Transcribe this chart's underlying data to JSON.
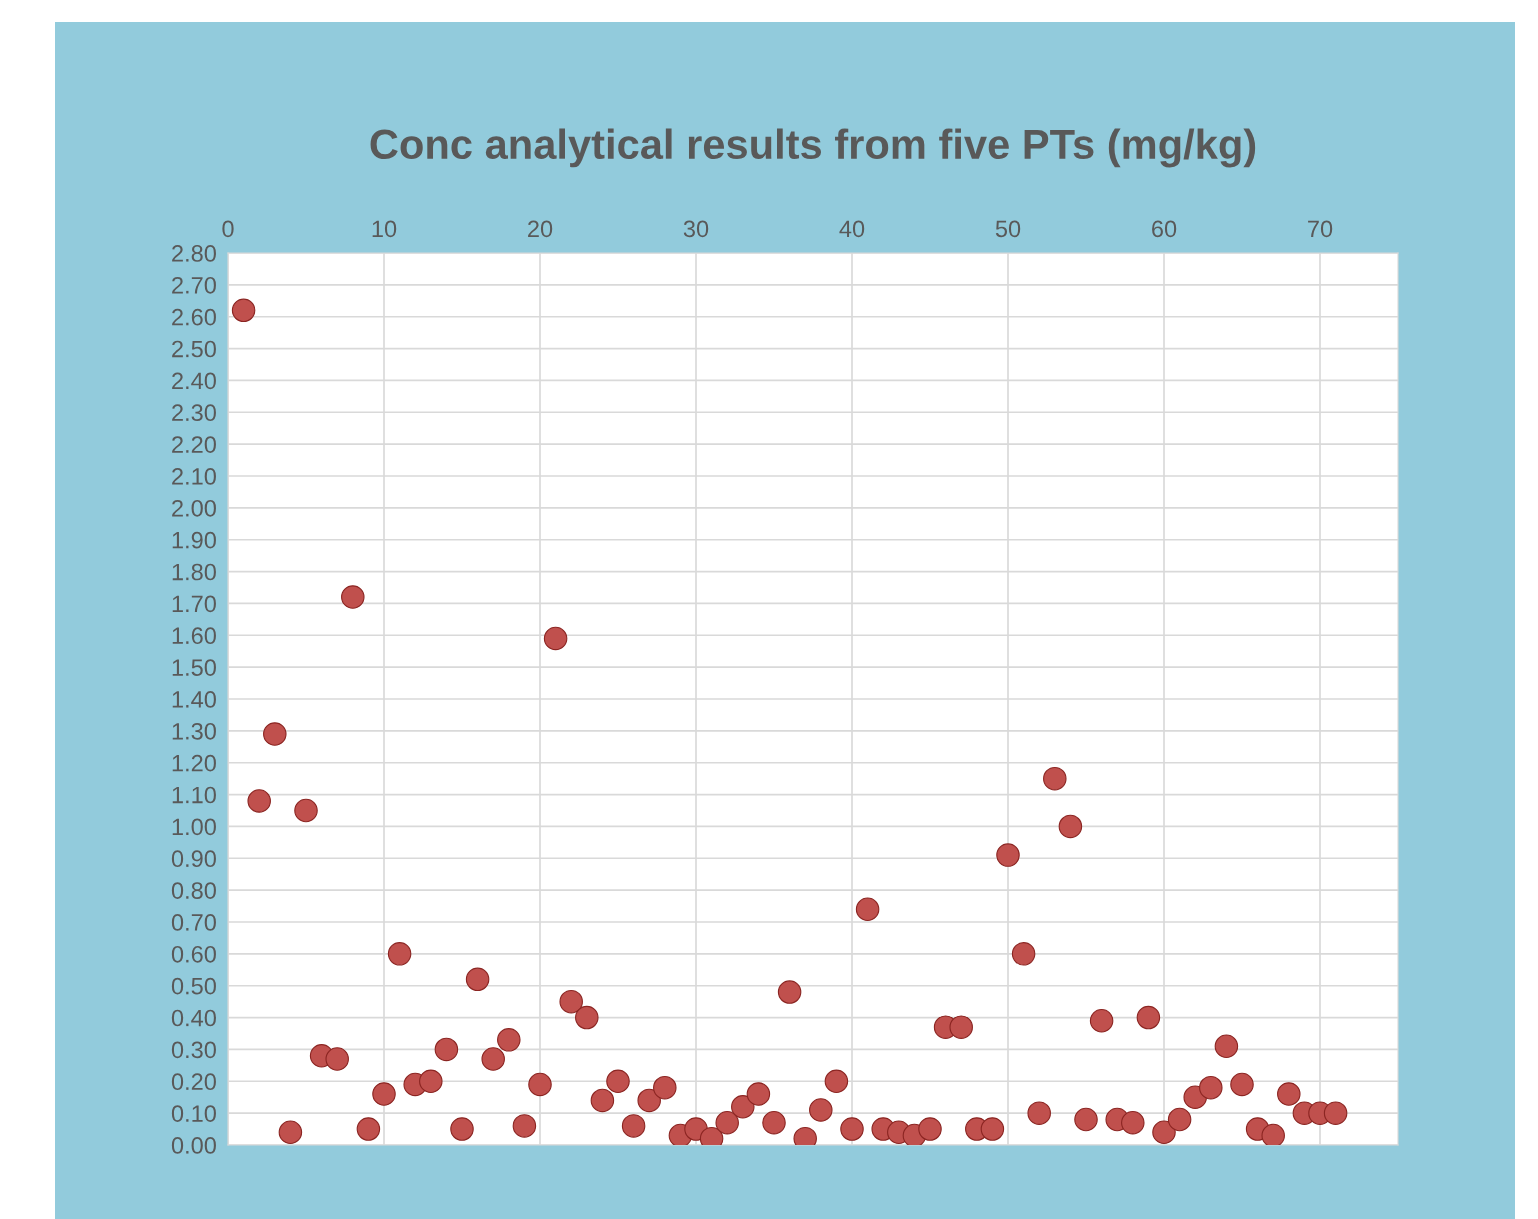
{
  "chart_data": {
    "type": "scatter",
    "title": "Conc analytical results from five PTs (mg/kg)",
    "x": [
      1,
      2,
      3,
      4,
      5,
      6,
      7,
      8,
      9,
      10,
      11,
      12,
      13,
      14,
      15,
      16,
      17,
      18,
      19,
      20,
      21,
      22,
      23,
      24,
      25,
      26,
      27,
      28,
      29,
      30,
      31,
      32,
      33,
      34,
      35,
      36,
      37,
      38,
      39,
      40,
      41,
      42,
      43,
      44,
      45,
      46,
      47,
      48,
      49,
      50,
      51,
      52,
      53,
      54,
      55,
      56,
      57,
      58,
      59,
      60,
      61,
      62,
      63,
      64,
      65,
      66,
      67,
      68,
      69,
      70,
      71
    ],
    "values": [
      2.62,
      1.08,
      1.29,
      0.04,
      1.05,
      0.28,
      0.27,
      1.72,
      0.05,
      0.16,
      0.6,
      0.19,
      0.2,
      0.3,
      0.05,
      0.52,
      0.27,
      0.33,
      0.06,
      0.19,
      1.59,
      0.45,
      0.4,
      0.14,
      0.2,
      0.06,
      0.14,
      0.18,
      0.03,
      0.05,
      0.02,
      0.07,
      0.12,
      0.16,
      0.07,
      0.48,
      0.02,
      0.11,
      0.2,
      0.05,
      0.74,
      0.05,
      0.04,
      0.03,
      0.05,
      0.37,
      0.37,
      0.05,
      0.05,
      0.91,
      0.6,
      0.1,
      1.15,
      1.0,
      0.08,
      0.39,
      0.08,
      0.07,
      0.4,
      0.04,
      0.08,
      0.15,
      0.18,
      0.31,
      0.19,
      0.05,
      0.03,
      0.16,
      0.1,
      0.1,
      0.1
    ],
    "color": "#c0504d",
    "marker": "circle",
    "grid": true,
    "xlim": [
      0,
      75
    ],
    "xticks": [
      0,
      10,
      20,
      30,
      40,
      50,
      60,
      70
    ],
    "ylim": [
      0,
      2.8
    ],
    "yticks": [
      {
        "value": 0,
        "label": "0.00"
      },
      {
        "value": 0.1,
        "label": "0.10"
      },
      {
        "value": 0.2,
        "label": "0.20"
      },
      {
        "value": 0.3,
        "label": "0.30"
      },
      {
        "value": 0.4,
        "label": "0.40"
      },
      {
        "value": 0.5,
        "label": "0.50"
      },
      {
        "value": 0.6,
        "label": "0.60"
      },
      {
        "value": 0.7,
        "label": "0.70"
      },
      {
        "value": 0.8,
        "label": "0.80"
      },
      {
        "value": 0.9,
        "label": "0.90"
      },
      {
        "value": 1.0,
        "label": "1.00"
      },
      {
        "value": 1.1,
        "label": "1.10"
      },
      {
        "value": 1.2,
        "label": "1.20"
      },
      {
        "value": 1.3,
        "label": "1.30"
      },
      {
        "value": 1.4,
        "label": "1.40"
      },
      {
        "value": 1.5,
        "label": "1.50"
      },
      {
        "value": 1.6,
        "label": "1.60"
      },
      {
        "value": 1.7,
        "label": "1.70"
      },
      {
        "value": 1.8,
        "label": "1.80"
      },
      {
        "value": 1.9,
        "label": "1.90"
      },
      {
        "value": 2.0,
        "label": "2.00"
      },
      {
        "value": 2.1,
        "label": "2.10"
      },
      {
        "value": 2.2,
        "label": "2.20"
      },
      {
        "value": 2.3,
        "label": "2.30"
      },
      {
        "value": 2.4,
        "label": "2.40"
      },
      {
        "value": 2.5,
        "label": "2.50"
      },
      {
        "value": 2.6,
        "label": "2.60"
      },
      {
        "value": 2.7,
        "label": "2.70"
      },
      {
        "value": 2.8,
        "label": "2.80"
      }
    ]
  }
}
